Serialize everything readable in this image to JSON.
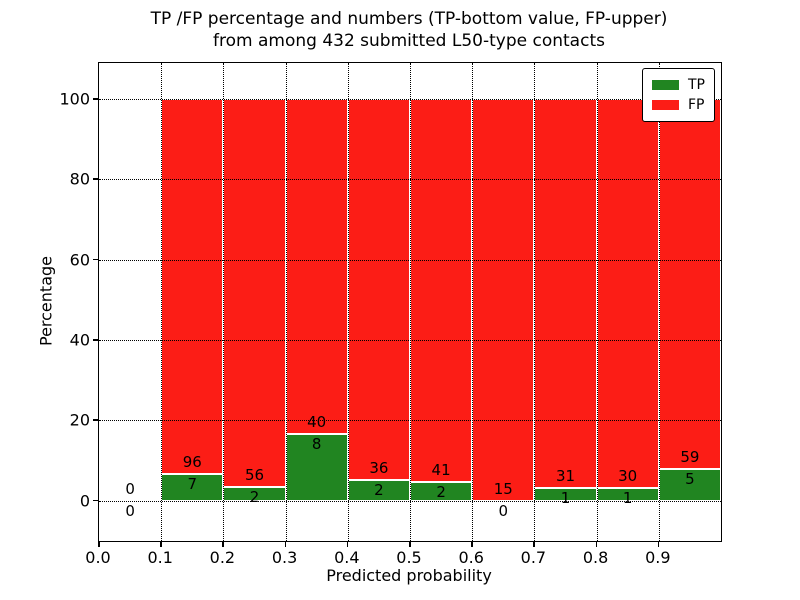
{
  "chart_data": {
    "type": "bar",
    "stacked": true,
    "normalized": "each bar stack totals 100 percent",
    "title_line1": "TP /FP percentage and numbers (TP-bottom value, FP-upper)",
    "title_line2": "from among 432 submitted L50-type contacts",
    "xlabel": "Predicted probability",
    "ylabel": "Percentage",
    "total_contacts": 432,
    "xlim": [
      0.0,
      1.0
    ],
    "ylim": [
      -10,
      109
    ],
    "xticks": [
      "0.0",
      "0.1",
      "0.2",
      "0.3",
      "0.4",
      "0.5",
      "0.6",
      "0.7",
      "0.8",
      "0.9"
    ],
    "yticks": [
      0,
      20,
      40,
      60,
      80,
      100
    ],
    "xgridlines": [
      0.1,
      0.2,
      0.3,
      0.4,
      0.5,
      0.6,
      0.7,
      0.8,
      0.9
    ],
    "grid_style": "dotted black, drawn above bars",
    "bins": [
      {
        "range": [
          0.0,
          0.1
        ],
        "tp_count": 0,
        "fp_count": 0
      },
      {
        "range": [
          0.1,
          0.2
        ],
        "tp_count": 7,
        "fp_count": 96
      },
      {
        "range": [
          0.2,
          0.3
        ],
        "tp_count": 2,
        "fp_count": 56
      },
      {
        "range": [
          0.3,
          0.4
        ],
        "tp_count": 8,
        "fp_count": 40
      },
      {
        "range": [
          0.4,
          0.5
        ],
        "tp_count": 2,
        "fp_count": 36
      },
      {
        "range": [
          0.5,
          0.6
        ],
        "tp_count": 2,
        "fp_count": 41
      },
      {
        "range": [
          0.6,
          0.7
        ],
        "tp_count": 0,
        "fp_count": 15
      },
      {
        "range": [
          0.7,
          0.8
        ],
        "tp_count": 1,
        "fp_count": 31
      },
      {
        "range": [
          0.8,
          0.9
        ],
        "tp_count": 1,
        "fp_count": 30
      },
      {
        "range": [
          0.9,
          1.0
        ],
        "tp_count": 5,
        "fp_count": 59
      }
    ],
    "legend": {
      "position": "upper right",
      "items": [
        {
          "label": "TP",
          "color": "#218521"
        },
        {
          "label": "FP",
          "color": "#fc1d16"
        }
      ]
    },
    "colors": {
      "tp": "#218521",
      "fp": "#fc1d16",
      "bar_edge": "#ffffff",
      "text": "#000000",
      "background": "#ffffff"
    }
  }
}
